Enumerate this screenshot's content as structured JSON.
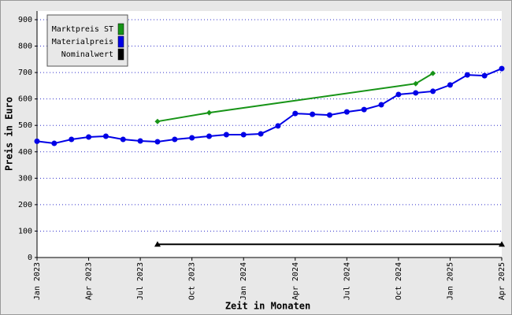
{
  "chart_data": {
    "type": "line",
    "x_label": "Zeit in Monaten",
    "y_label": "Preis in Euro",
    "xlim": [
      "Jan 2023",
      "Apr 2025"
    ],
    "xticks": [
      "Jan 2023",
      "Apr 2023",
      "Jul 2023",
      "Oct 2023",
      "Jan 2024",
      "Apr 2024",
      "Jul 2024",
      "Oct 2024",
      "Jan 2025",
      "Apr 2025"
    ],
    "ylim": [
      0,
      900
    ],
    "yticks": [
      0,
      100,
      200,
      300,
      400,
      500,
      600,
      700,
      800,
      900
    ],
    "grid": true,
    "legend": "top-left",
    "series": [
      {
        "name": "Marktpreis ST",
        "color": "#179417",
        "marker": "diamond",
        "x": [
          "Aug 2023",
          "Nov 2023",
          "Nov 2024",
          "Dec 2024"
        ],
        "values": [
          515,
          548,
          658,
          697
        ]
      },
      {
        "name": "Materialpreis",
        "color": "#0000e6",
        "marker": "circle",
        "x": [
          "Jan 2023",
          "Feb 2023",
          "Mar 2023",
          "Apr 2023",
          "May 2023",
          "Jun 2023",
          "Jul 2023",
          "Aug 2023",
          "Sep 2023",
          "Oct 2023",
          "Nov 2023",
          "Dec 2023",
          "Jan 2024",
          "Feb 2024",
          "Mar 2024",
          "Apr 2024",
          "May 2024",
          "Jun 2024",
          "Jul 2024",
          "Aug 2024",
          "Sep 2024",
          "Oct 2024",
          "Nov 2024",
          "Dec 2024",
          "Jan 2025",
          "Feb 2025",
          "Mar 2025",
          "Apr 2025"
        ],
        "values": [
          440,
          432,
          447,
          456,
          459,
          447,
          441,
          438,
          447,
          453,
          459,
          465,
          465,
          468,
          498,
          545,
          542,
          539,
          551,
          560,
          578,
          617,
          623,
          629,
          653,
          691,
          688,
          715
        ]
      },
      {
        "name": "Nominalwert",
        "color": "#000000",
        "marker": "triangle",
        "x": [
          "Aug 2023",
          "Apr 2025"
        ],
        "values": [
          50,
          50
        ]
      }
    ]
  }
}
